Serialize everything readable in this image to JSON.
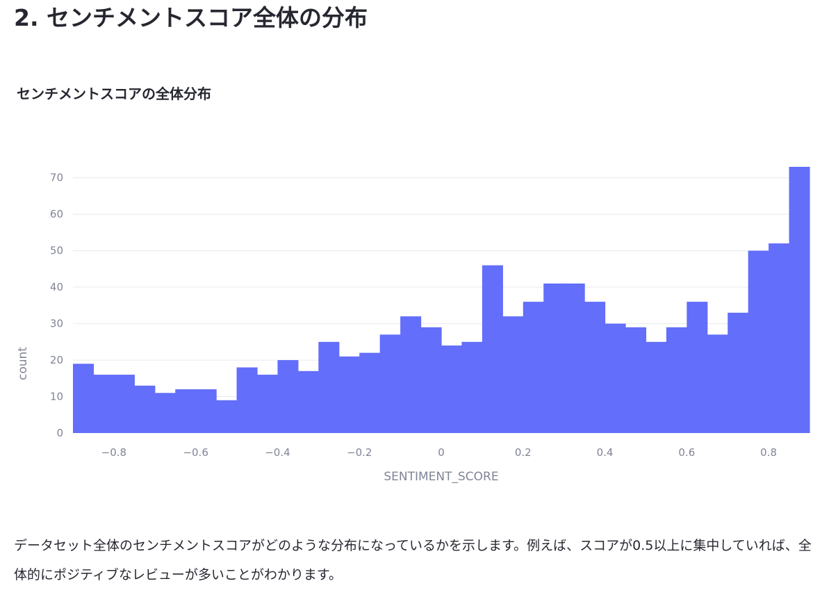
{
  "section": {
    "heading": "2. センチメントスコア全体の分布"
  },
  "description": "データセット全体のセンチメントスコアがどのような分布になっているかを示します。例えば、スコアが0.5以上に集中していれば、全体的にポジティブなレビューが多いことがわかります。",
  "colors": {
    "bar": "#636efa",
    "grid": "#e6e9ef",
    "tick": "#808495",
    "text": "#262730"
  },
  "chart_data": {
    "type": "bar",
    "title": "センチメントスコアの全体分布",
    "xlabel": "SENTIMENT_SCORE",
    "ylabel": "count",
    "bin_width": 0.05,
    "x_start": -0.9,
    "xlim": [
      -0.9,
      0.9
    ],
    "ylim": [
      0,
      73
    ],
    "grid": true,
    "legend": "none",
    "x_ticks": [
      {
        "value": -0.8,
        "label": "−0.8"
      },
      {
        "value": -0.6,
        "label": "−0.6"
      },
      {
        "value": -0.4,
        "label": "−0.4"
      },
      {
        "value": -0.2,
        "label": "−0.2"
      },
      {
        "value": 0,
        "label": "0"
      },
      {
        "value": 0.2,
        "label": "0.2"
      },
      {
        "value": 0.4,
        "label": "0.4"
      },
      {
        "value": 0.6,
        "label": "0.6"
      },
      {
        "value": 0.8,
        "label": "0.8"
      }
    ],
    "y_ticks": [
      {
        "value": 0,
        "label": "0"
      },
      {
        "value": 10,
        "label": "10"
      },
      {
        "value": 20,
        "label": "20"
      },
      {
        "value": 30,
        "label": "30"
      },
      {
        "value": 40,
        "label": "40"
      },
      {
        "value": 50,
        "label": "50"
      },
      {
        "value": 60,
        "label": "60"
      },
      {
        "value": 70,
        "label": "70"
      }
    ],
    "values": [
      19,
      16,
      16,
      13,
      11,
      12,
      12,
      9,
      18,
      16,
      20,
      17,
      25,
      21,
      22,
      27,
      32,
      29,
      24,
      25,
      46,
      32,
      36,
      41,
      41,
      36,
      30,
      29,
      25,
      29,
      36,
      27,
      33,
      50,
      52,
      73
    ]
  }
}
